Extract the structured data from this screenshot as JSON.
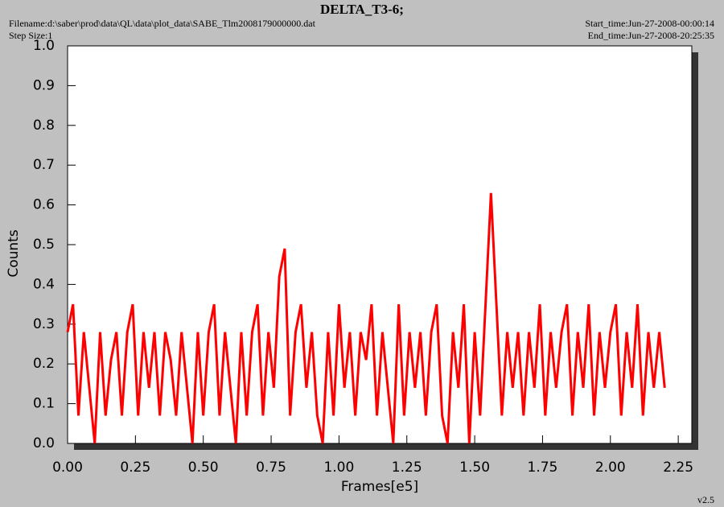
{
  "chart_data": {
    "type": "line",
    "title": "DELTA_T3-6;",
    "filename": "Filename:d:\\saber\\prod\\data\\QL\\data\\plot_data\\SABE_Tlm2008179000000.dat",
    "step_size": "Step Size:1",
    "start_time": "Start_time:Jun-27-2008-00:00:14",
    "end_time": "End_time:Jun-27-2008-20:25:35",
    "version": "v2.5",
    "xlabel": "Frames[e5]",
    "ylabel": "Counts",
    "xlim": [
      0,
      2.3
    ],
    "ylim": [
      0,
      1
    ],
    "xticks": [
      {
        "value": 0,
        "label": "0.00"
      },
      0.25,
      {
        "value": 0.5,
        "label": "0.50"
      },
      0.75,
      {
        "value": 1,
        "label": "1.00"
      },
      1.25,
      {
        "value": 1.5,
        "label": "1.50"
      },
      1.75,
      {
        "value": 2,
        "label": "2.00"
      },
      2.25
    ],
    "yticks": [
      {
        "value": 0,
        "label": "0.0"
      },
      0.1,
      0.2,
      0.3,
      0.4,
      0.5,
      0.6,
      0.7,
      0.8,
      0.9,
      {
        "value": 1,
        "label": "1.0"
      }
    ],
    "grid": false,
    "series": [
      {
        "color": "#ff0000",
        "x": [
          0,
          0.02,
          0.04,
          0.06,
          0.08,
          0.1,
          0.12,
          0.14,
          0.16,
          0.18,
          0.2,
          0.22,
          0.24,
          0.26,
          0.28,
          0.3,
          0.32,
          0.34,
          0.36,
          0.38,
          0.4,
          0.42,
          0.44,
          0.46,
          0.48,
          0.5,
          0.52,
          0.54,
          0.56,
          0.58,
          0.6,
          0.62,
          0.64,
          0.66,
          0.68,
          0.7,
          0.72,
          0.74,
          0.76,
          0.78,
          0.8,
          0.82,
          0.84,
          0.86,
          0.88,
          0.9,
          0.92,
          0.94,
          0.96,
          0.98,
          1,
          1.02,
          1.04,
          1.06,
          1.08,
          1.1,
          1.12,
          1.14,
          1.16,
          1.18,
          1.2,
          1.22,
          1.24,
          1.26,
          1.28,
          1.3,
          1.32,
          1.34,
          1.36,
          1.38,
          1.4,
          1.42,
          1.44,
          1.46,
          1.48,
          1.5,
          1.52,
          1.54,
          1.56,
          1.58,
          1.6,
          1.62,
          1.64,
          1.66,
          1.68,
          1.7,
          1.72,
          1.74,
          1.76,
          1.78,
          1.8,
          1.82,
          1.84,
          1.86,
          1.88,
          1.9,
          1.92,
          1.94,
          1.96,
          1.98,
          2,
          2.02,
          2.04,
          2.06,
          2.08,
          2.1,
          2.12,
          2.14,
          2.16,
          2.18,
          2.2
        ],
        "values": [
          0.28,
          0.35,
          0.07,
          0.28,
          0.14,
          0,
          0.28,
          0.07,
          0.21,
          0.28,
          0.07,
          0.28,
          0.35,
          0.07,
          0.28,
          0.14,
          0.28,
          0.07,
          0.28,
          0.21,
          0.07,
          0.28,
          0.14,
          0,
          0.28,
          0.07,
          0.28,
          0.35,
          0.07,
          0.28,
          0.14,
          0,
          0.28,
          0.07,
          0.28,
          0.35,
          0.07,
          0.28,
          0.14,
          0.42,
          0.49,
          0.07,
          0.28,
          0.35,
          0.14,
          0.28,
          0.07,
          0,
          0.28,
          0.07,
          0.35,
          0.14,
          0.28,
          0.07,
          0.28,
          0.21,
          0.35,
          0.07,
          0.28,
          0.14,
          0,
          0.35,
          0.07,
          0.28,
          0.14,
          0.28,
          0.07,
          0.28,
          0.35,
          0.07,
          0,
          0.28,
          0.14,
          0.35,
          0,
          0.28,
          0.07,
          0.35,
          0.63,
          0.35,
          0.07,
          0.28,
          0.14,
          0.28,
          0.07,
          0.28,
          0.14,
          0.35,
          0.07,
          0.28,
          0.14,
          0.28,
          0.35,
          0.07,
          0.28,
          0.14,
          0.35,
          0.07,
          0.28,
          0.14,
          0.28,
          0.35,
          0.07,
          0.28,
          0.14,
          0.35,
          0.07,
          0.28,
          0.14,
          0.28,
          0.14
        ]
      }
    ]
  }
}
